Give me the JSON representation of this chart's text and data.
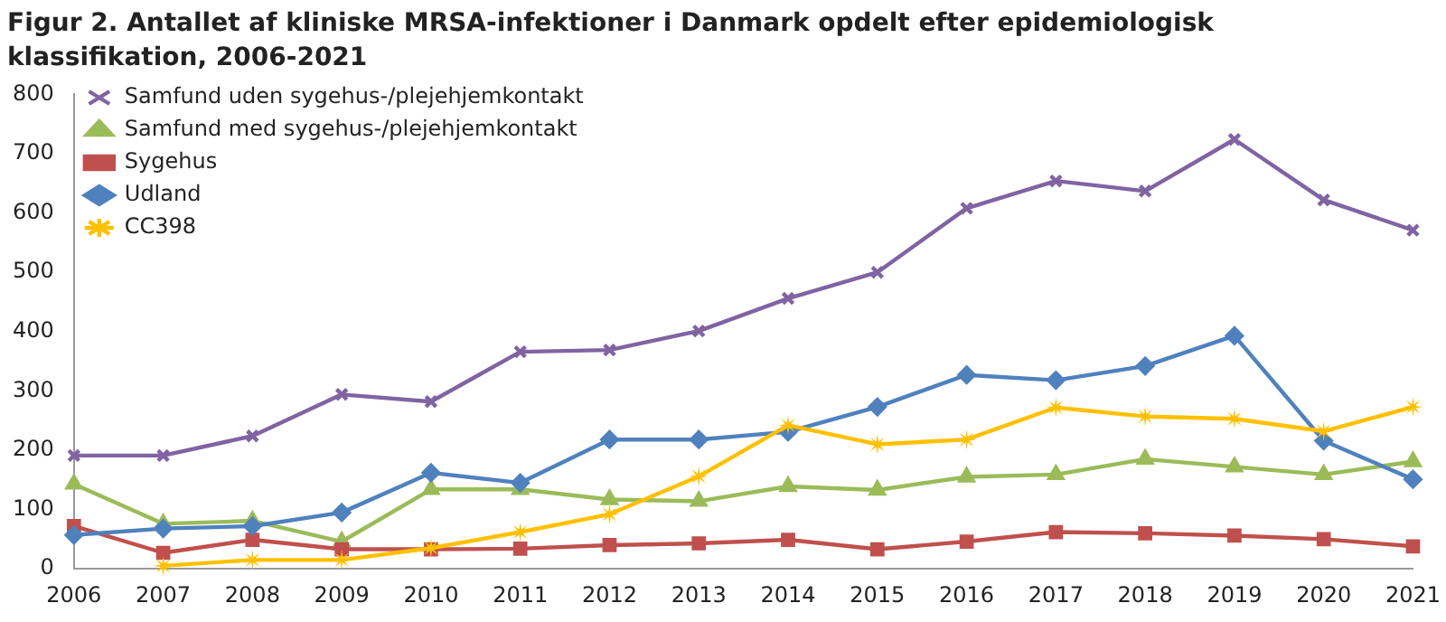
{
  "chart_data": {
    "type": "line",
    "title": "Figur 2. Antallet af kliniske MRSA-infektioner i Danmark opdelt efter epidemiologisk klassifikation, 2006-2021",
    "categories": [
      "2006",
      "2007",
      "2008",
      "2009",
      "2010",
      "2011",
      "2012",
      "2013",
      "2014",
      "2015",
      "2016",
      "2017",
      "2018",
      "2019",
      "2020",
      "2021"
    ],
    "series": [
      {
        "name": "Samfund uden sygehus-/plejehjemkontakt",
        "color": "#8064a2",
        "marker": "cross",
        "values": [
          191,
          191,
          224,
          294,
          282,
          366,
          369,
          401,
          456,
          500,
          608,
          654,
          637,
          724,
          622,
          571
        ]
      },
      {
        "name": "Samfund med sygehus-/plejehjemkontakt",
        "color": "#9bbb59",
        "marker": "triangle",
        "values": [
          143,
          76,
          81,
          46,
          134,
          134,
          117,
          114,
          139,
          133,
          155,
          159,
          185,
          172,
          159,
          181
        ]
      },
      {
        "name": "Sygehus",
        "color": "#c0504d",
        "marker": "square",
        "values": [
          72,
          27,
          49,
          33,
          33,
          34,
          40,
          43,
          49,
          33,
          46,
          62,
          60,
          56,
          50,
          38
        ]
      },
      {
        "name": "Udland",
        "color": "#4f81bd",
        "marker": "diamond",
        "values": [
          57,
          68,
          72,
          95,
          162,
          145,
          218,
          218,
          231,
          273,
          327,
          318,
          342,
          393,
          216,
          151
        ]
      },
      {
        "name": "CC398",
        "color": "#ffc000",
        "marker": "star",
        "values": [
          null,
          5,
          15,
          15,
          35,
          62,
          92,
          156,
          242,
          210,
          218,
          272,
          257,
          253,
          232,
          273
        ]
      }
    ],
    "ylim": [
      0,
      800
    ],
    "yticks": [
      0,
      100,
      200,
      300,
      400,
      500,
      600,
      700,
      800
    ],
    "grid": false,
    "legend": "top left",
    "line_style": "solid"
  }
}
